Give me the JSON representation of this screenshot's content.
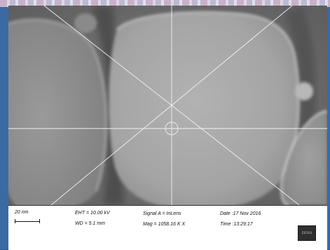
{
  "scale_bar": {
    "label": "20 nm"
  },
  "parameters": {
    "eht": "EHT = 10.00 kV",
    "wd": "WD = 5.1 mm",
    "signal": "Signal A = InLens",
    "mag": "Mag = 1058.16 K X",
    "date": "Date :17 Nov 2016",
    "time": "Time :13:29:17"
  },
  "logo": {
    "text": "ZEISS"
  },
  "colors": {
    "border_blue": "#3a6aa3",
    "crosshair": "#f2f2f2"
  }
}
